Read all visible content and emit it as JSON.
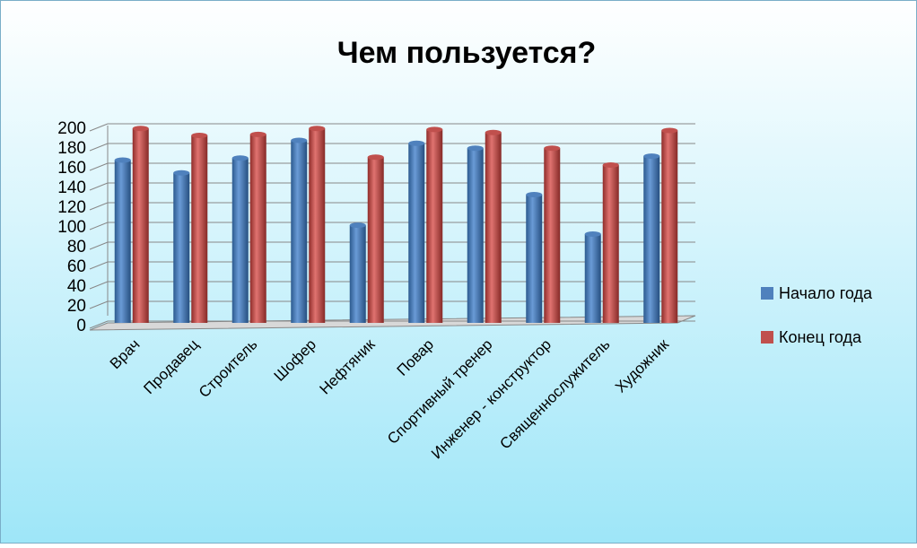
{
  "chart_data": {
    "type": "bar",
    "title": "Чем пользуется?",
    "categories": [
      "Врач",
      "Продавец",
      "Строитель",
      "Шофер",
      "Нефтяник",
      "Повар",
      "Спортивный тренер",
      "Инженер - конструктор",
      "Священнослужитель",
      "Художник"
    ],
    "series": [
      {
        "name": "Начало года",
        "color": "#4f81bd",
        "values": [
          165,
          152,
          167,
          185,
          99,
          182,
          177,
          130,
          90,
          169
        ]
      },
      {
        "name": "Конец года",
        "color": "#c0504d",
        "values": [
          197,
          190,
          191,
          197,
          168,
          196,
          193,
          177,
          160,
          195
        ]
      }
    ],
    "ylim": [
      0,
      200
    ],
    "yticks": [
      0,
      20,
      40,
      60,
      80,
      100,
      120,
      140,
      160,
      180,
      200
    ],
    "grid": true,
    "legend": "right"
  }
}
